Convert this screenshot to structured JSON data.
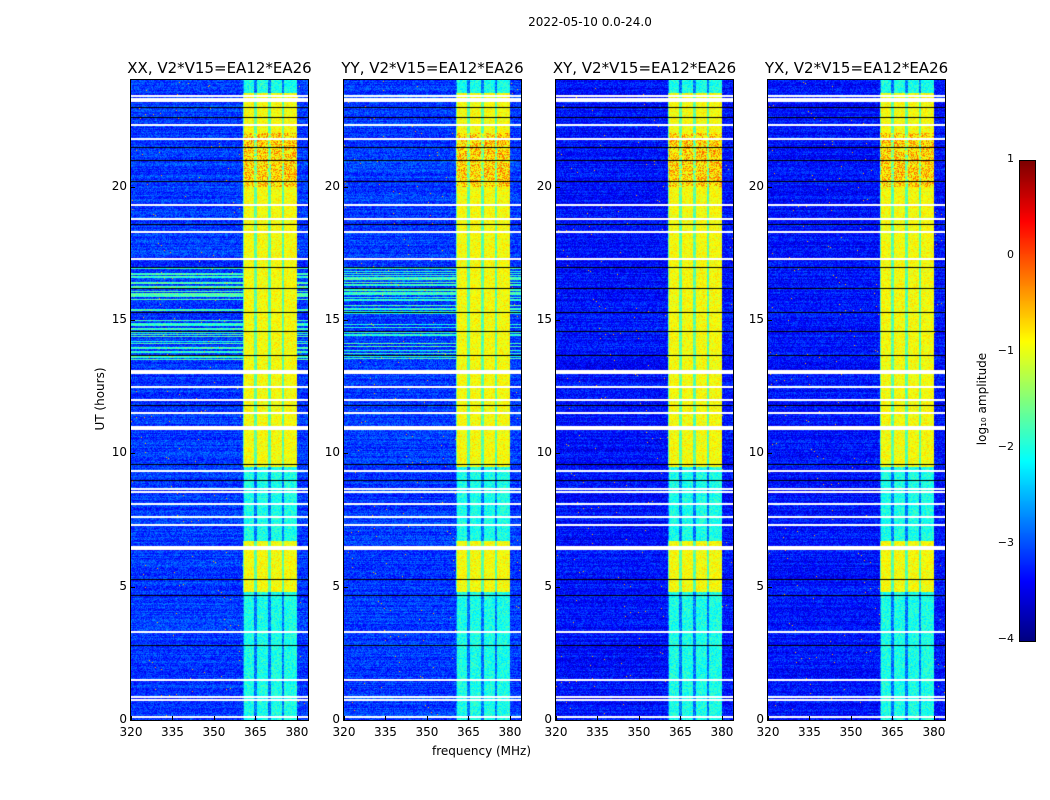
{
  "chart_data": {
    "type": "heatmap",
    "title": "2022-05-10 0.0-24.0",
    "xlabel": "frequency (MHz)",
    "ylabel": "UT (hours)",
    "xlim": [
      320,
      384
    ],
    "ylim": [
      0,
      24
    ],
    "xticks": [
      "320",
      "335",
      "350",
      "365",
      "380"
    ],
    "xtick_values": [
      320,
      335,
      350,
      365,
      380
    ],
    "yticks": [
      "0",
      "5",
      "10",
      "15",
      "20"
    ],
    "ytick_values": [
      0,
      5,
      10,
      15,
      20
    ],
    "panels": [
      {
        "title": "XX, V2*V15=EA12*EA26",
        "background_level": -3.1,
        "rfi_stripes": true
      },
      {
        "title": "YY, V2*V15=EA12*EA26",
        "background_level": -3.1,
        "rfi_stripes": true
      },
      {
        "title": "XY, V2*V15=EA12*EA26",
        "background_level": -3.3,
        "rfi_stripes": false
      },
      {
        "title": "YX, V2*V15=EA12*EA26",
        "background_level": -3.3,
        "rfi_stripes": false
      }
    ],
    "bright_band_mhz": [
      360.5,
      380
    ],
    "subband_edges_mhz": [
      365,
      370,
      375
    ],
    "bright_intervals_ut": [
      [
        4.8,
        6.7
      ],
      [
        9.5,
        23.5
      ]
    ],
    "bright_level": -0.9,
    "dim_band_level": -2.0,
    "flagged_ut": [
      0.1,
      0.75,
      0.85,
      1.5,
      3.3,
      6.4,
      6.5,
      7.3,
      7.6,
      8.1,
      8.55,
      8.65,
      9.35,
      10.9,
      11.0,
      11.5,
      12.0,
      12.5,
      13.0,
      13.1,
      17.3,
      18.3,
      18.8,
      19.3,
      21.8,
      22.3,
      23.2,
      23.3,
      23.4
    ],
    "black_ut": [
      2.8,
      4.7,
      5.3,
      9.0,
      9.6,
      11.8,
      13.7,
      14.6,
      15.3,
      16.2,
      17.0,
      18.6,
      20.2,
      21.0,
      21.5,
      22.6,
      23.0
    ],
    "colorbar": {
      "label": "log₁₀ amplitude",
      "min": -4,
      "max": 1,
      "ticks": [
        "1",
        "0",
        "−1",
        "−2",
        "−3",
        "−4"
      ],
      "tick_values": [
        1,
        0,
        -1,
        -2,
        -3,
        -4
      ],
      "colormap": "jet"
    }
  }
}
